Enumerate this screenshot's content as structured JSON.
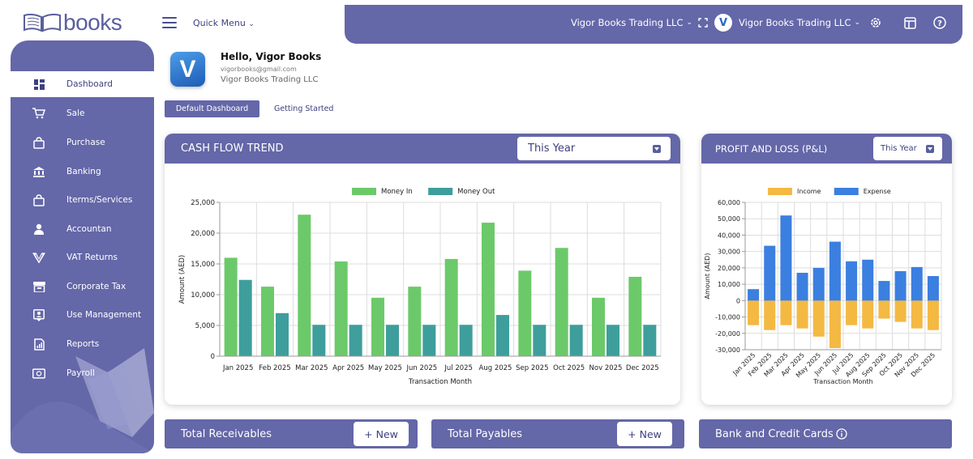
{
  "brand": {
    "logo_text": "books"
  },
  "sidebar": {
    "items": [
      {
        "label": "Dashboard",
        "icon": "dashboard-icon",
        "active": true
      },
      {
        "label": "Sale",
        "icon": "cart-icon"
      },
      {
        "label": "Purchase",
        "icon": "bag-icon"
      },
      {
        "label": "Banking",
        "icon": "bank-icon"
      },
      {
        "label": "Iterms/Services",
        "icon": "bag-icon"
      },
      {
        "label": "Accountan",
        "icon": "user-icon"
      },
      {
        "label": "VAT Returns",
        "icon": "vat-icon"
      },
      {
        "label": "Corporate Tax",
        "icon": "store-icon"
      },
      {
        "label": "Use Management",
        "icon": "user-card-icon"
      },
      {
        "label": "Reports",
        "icon": "report-icon"
      },
      {
        "label": "Payroll",
        "icon": "payroll-icon"
      }
    ]
  },
  "header": {
    "quick_menu": "Quick Menu",
    "org_selector": "Vigor Books Trading LLC",
    "account_name": "Vigor Books Trading LLC",
    "account_avatar": "V"
  },
  "welcome": {
    "avatar_letter": "V",
    "greeting": "Hello, Vigor Books",
    "email": "vigorbooks@gmail.com",
    "company": "Vigor Books Trading LLC"
  },
  "tabs": {
    "default": "Default Dashboard",
    "started": "Getting Started"
  },
  "cash_flow": {
    "title": "CASH FLOW TREND",
    "period": "This Year"
  },
  "pnl": {
    "title": "PROFIT AND LOSS (P&L)",
    "period": "This Year"
  },
  "bottom": {
    "receivables": "Total Receivables",
    "payables": "Total Payables",
    "bank": "Bank and Credit Cards",
    "new_label": "+ New"
  },
  "chart_data": [
    {
      "type": "bar",
      "xlabel": "Transaction Month",
      "ylabel": "Amount (AED)",
      "ylim": [
        0,
        25000
      ],
      "yticks": [
        "0",
        "5,000",
        "10,000",
        "15,000",
        "20,000",
        "25,000"
      ],
      "legend_position": "top",
      "grid": true,
      "categories": [
        "Jan 2025",
        "Feb 2025",
        "Mar 2025",
        "Apr 2025",
        "May 2025",
        "Jun 2025",
        "Jul 2025",
        "Aug 2025",
        "Sep 2025",
        "Oct 2025",
        "Nov 2025",
        "Dec 2025"
      ],
      "series": [
        {
          "name": "Money In",
          "color": "#6cc96a",
          "values": [
            16000,
            11300,
            23000,
            15400,
            9500,
            11300,
            15800,
            21700,
            13900,
            17600,
            9500,
            12900
          ]
        },
        {
          "name": "Money Out",
          "color": "#3e9e9c",
          "values": [
            12400,
            7000,
            5100,
            5100,
            5100,
            5100,
            5100,
            6700,
            5100,
            5100,
            5100,
            5100
          ]
        }
      ]
    },
    {
      "type": "bar",
      "xlabel": "Transaction Month",
      "ylabel": "Amount (AED)",
      "ylim": [
        -30000,
        60000
      ],
      "yticks": [
        "-30,000",
        "-20,000",
        "-10,000",
        "0",
        "10,000",
        "20,000",
        "30,000",
        "40,000",
        "50,000",
        "60,000"
      ],
      "legend_position": "top",
      "grid": true,
      "stacked": true,
      "categories": [
        "Jan 2025",
        "Feb 2025",
        "Mar 2025",
        "Apr 2025",
        "May 2025",
        "Jun 2025",
        "Jul 2025",
        "Aug 2025",
        "Sep 2025",
        "Oct 2025",
        "Nov 2025",
        "Dec 2025"
      ],
      "series": [
        {
          "name": "Income",
          "color": "#f4b942",
          "values": [
            -15000,
            -18000,
            -15000,
            -17000,
            -22000,
            -29000,
            -15000,
            -17000,
            -11000,
            -13000,
            -17000,
            -18000
          ]
        },
        {
          "name": "Expense",
          "color": "#3b7fe0",
          "values": [
            7000,
            33500,
            52000,
            17000,
            20000,
            36000,
            24000,
            25000,
            12000,
            18000,
            20500,
            15000
          ]
        }
      ]
    }
  ]
}
